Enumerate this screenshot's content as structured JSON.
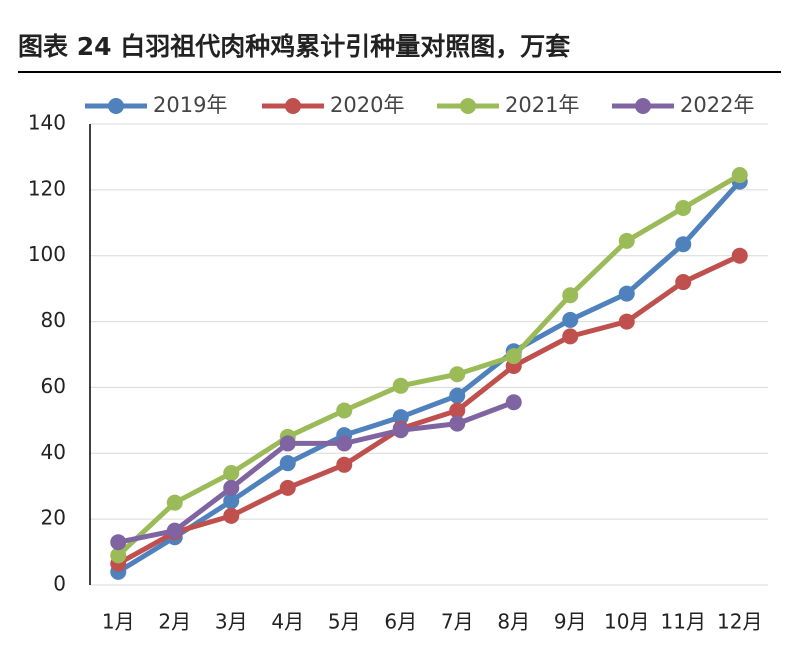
{
  "chart_data": {
    "type": "line",
    "title": "图表 24 白羽祖代肉种鸡累计引种量对照图，万套",
    "categories": [
      "1月",
      "2月",
      "3月",
      "4月",
      "5月",
      "6月",
      "7月",
      "8月",
      "9月",
      "10月",
      "11月",
      "12月"
    ],
    "series": [
      {
        "name": "2019年",
        "color": "#4f81bd",
        "values": [
          4,
          14.5,
          25.5,
          37,
          45.5,
          51,
          57.5,
          71,
          80.5,
          88.5,
          103.5,
          122.5
        ]
      },
      {
        "name": "2020年",
        "color": "#c0504d",
        "values": [
          6.5,
          16,
          21,
          29.5,
          36.5,
          47.5,
          53,
          66.5,
          75.5,
          80,
          92,
          100
        ]
      },
      {
        "name": "2021年",
        "color": "#9bbb59",
        "values": [
          9,
          25,
          34,
          45,
          53,
          60.5,
          64,
          69.5,
          88,
          104.5,
          114.5,
          124.5
        ]
      },
      {
        "name": "2022年",
        "color": "#8064a2",
        "values": [
          13,
          16.5,
          29.5,
          43,
          43,
          47,
          49,
          55.5,
          null,
          null,
          null,
          null
        ]
      }
    ],
    "ylim": [
      0,
      140
    ],
    "yticks": [
      0,
      20,
      40,
      60,
      80,
      100,
      120,
      140
    ],
    "grid": true,
    "legend": "top"
  }
}
